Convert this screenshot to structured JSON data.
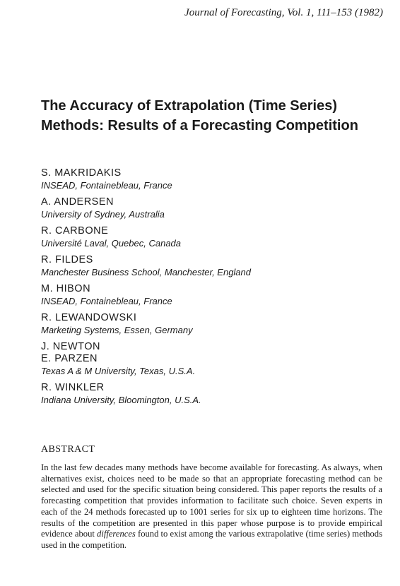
{
  "journal_ref": "Journal of Forecasting, Vol. 1, 111–153 (1982)",
  "title": "The Accuracy of Extrapolation (Time Series) Methods: Results of a Forecasting Competition",
  "authors": [
    {
      "names": [
        "S. MAKRIDAKIS"
      ],
      "affiliation": "INSEAD, Fontainebleau, France"
    },
    {
      "names": [
        "A. ANDERSEN"
      ],
      "affiliation": "University of Sydney, Australia"
    },
    {
      "names": [
        "R. CARBONE"
      ],
      "affiliation": "Université Laval, Quebec, Canada"
    },
    {
      "names": [
        "R. FILDES"
      ],
      "affiliation": "Manchester Business School, Manchester, England"
    },
    {
      "names": [
        "M. HIBON"
      ],
      "affiliation": "INSEAD, Fontainebleau, France"
    },
    {
      "names": [
        "R. LEWANDOWSKI"
      ],
      "affiliation": "Marketing Systems, Essen, Germany"
    },
    {
      "names": [
        "J. NEWTON",
        "E. PARZEN"
      ],
      "affiliation": "Texas A & M University, Texas, U.S.A."
    },
    {
      "names": [
        "R. WINKLER"
      ],
      "affiliation": "Indiana University, Bloomington, U.S.A."
    }
  ],
  "abstract": {
    "heading": "ABSTRACT",
    "text_before": "In the last few decades many methods have become available for forecasting. As always, when alternatives exist, choices need to be made so that an appropriate forecasting method can be selected and used for the specific situation being considered. This paper reports the results of a forecasting competition that provides information to facilitate such choice. Seven experts in each of the 24 methods forecasted up to 1001 series for six up to eighteen time horizons. The results of the competition are presented in this paper whose purpose is to provide empirical evidence about ",
    "emphasis": "differences",
    "text_after": " found to exist among the various extrapolative (time series) methods used in the competition."
  }
}
